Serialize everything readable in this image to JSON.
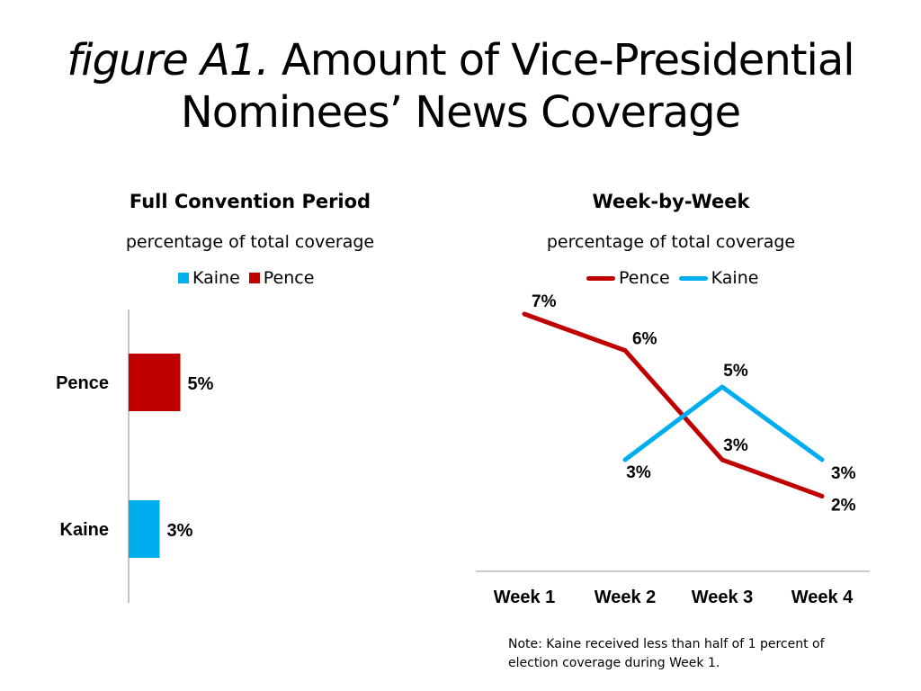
{
  "title": {
    "prefix": "figure A1.",
    "main": "Amount of Vice-Presidential",
    "line2": "Nominees’ News Coverage"
  },
  "left_panel": {
    "title": "Full Convention Period",
    "subtitle": "percentage of total coverage",
    "legend": [
      {
        "name": "Kaine",
        "color": "#00aeef"
      },
      {
        "name": "Pence",
        "color": "#c00000"
      }
    ]
  },
  "right_panel": {
    "title": "Week-by-Week",
    "subtitle": "percentage of total coverage",
    "legend": [
      {
        "name": "Pence",
        "color": "#c00000"
      },
      {
        "name": "Kaine",
        "color": "#00aeef"
      }
    ]
  },
  "note": "Note: Kaine received less than half of 1 percent of election coverage during Week 1.",
  "chart_data": [
    {
      "type": "bar",
      "orientation": "horizontal",
      "title": "Full Convention Period",
      "subtitle": "percentage of total coverage",
      "categories": [
        "Pence",
        "Kaine"
      ],
      "values": [
        5,
        3
      ],
      "labels": [
        "5%",
        "3%"
      ],
      "colors": [
        "#c00000",
        "#00aeef"
      ],
      "xlim": [
        0,
        100
      ],
      "grid": false,
      "legend_placement": "top"
    },
    {
      "type": "line",
      "title": "Week-by-Week",
      "subtitle": "percentage of total coverage",
      "categories": [
        "Week 1",
        "Week 2",
        "Week 3",
        "Week 4"
      ],
      "series": [
        {
          "name": "Pence",
          "color": "#c00000",
          "values": [
            7,
            6,
            3,
            2
          ],
          "labels": [
            "7%",
            "6%",
            "3%",
            "2%"
          ]
        },
        {
          "name": "Kaine",
          "color": "#00aeef",
          "values": [
            null,
            3,
            5,
            3
          ],
          "labels": [
            "",
            "3%",
            "5%",
            "3%"
          ]
        }
      ],
      "grid": false,
      "legend_placement": "top"
    }
  ]
}
